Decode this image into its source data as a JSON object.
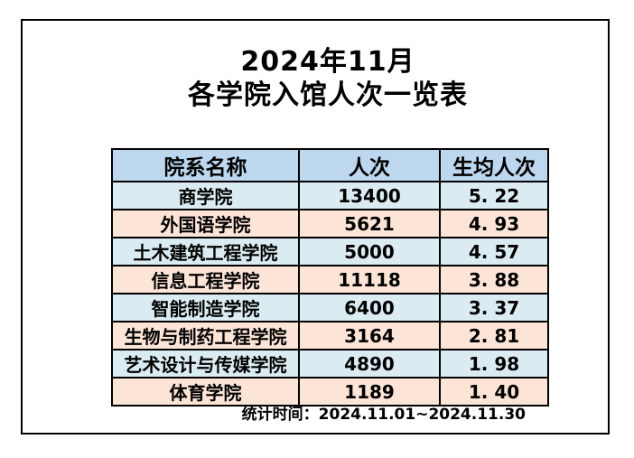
{
  "title": {
    "line1": "2024年11月",
    "line2": "各学院入馆人次一览表"
  },
  "table": {
    "headers": {
      "department": "院系名称",
      "visits": "人次",
      "per_student": "生均人次"
    },
    "rows": [
      {
        "department": "商学院",
        "visits": "13400",
        "per_student": "5. 22"
      },
      {
        "department": "外国语学院",
        "visits": "5621",
        "per_student": "4. 93"
      },
      {
        "department": "土木建筑工程学院",
        "visits": "5000",
        "per_student": "4. 57"
      },
      {
        "department": "信息工程学院",
        "visits": "11118",
        "per_student": "3. 88"
      },
      {
        "department": "智能制造学院",
        "visits": "6400",
        "per_student": "3. 37"
      },
      {
        "department": "生物与制药工程学院",
        "visits": "3164",
        "per_student": "2. 81"
      },
      {
        "department": "艺术设计与传媒学院",
        "visits": "4890",
        "per_student": "1. 98"
      },
      {
        "department": "体育学院",
        "visits": "1189",
        "per_student": "1. 40"
      }
    ]
  },
  "footer": {
    "stats_period": "统计时间：2024.11.01~2024.11.30"
  },
  "colors": {
    "header_bg": "#BDD7EE",
    "row_alt_blue": "#DAEBF2",
    "row_alt_peach": "#FCE4D6",
    "border": "#000000",
    "text": "#000000",
    "background": "#FFFFFF"
  },
  "chart_data": {
    "type": "table",
    "title": "2024年11月 各学院入馆人次一览表",
    "columns": [
      "院系名称",
      "人次",
      "生均人次"
    ],
    "rows": [
      [
        "商学院",
        13400,
        5.22
      ],
      [
        "外国语学院",
        5621,
        4.93
      ],
      [
        "土木建筑工程学院",
        5000,
        4.57
      ],
      [
        "信息工程学院",
        11118,
        3.88
      ],
      [
        "智能制造学院",
        6400,
        3.37
      ],
      [
        "生物与制药工程学院",
        3164,
        2.81
      ],
      [
        "艺术设计与传媒学院",
        4890,
        1.98
      ],
      [
        "体育学院",
        1189,
        1.4
      ]
    ],
    "annotations": [
      "统计时间：2024.11.01~2024.11.30"
    ],
    "layout": "header row shaded blue; body rows alternate light-cyan / light-peach; all text bold black; black gridlines"
  }
}
